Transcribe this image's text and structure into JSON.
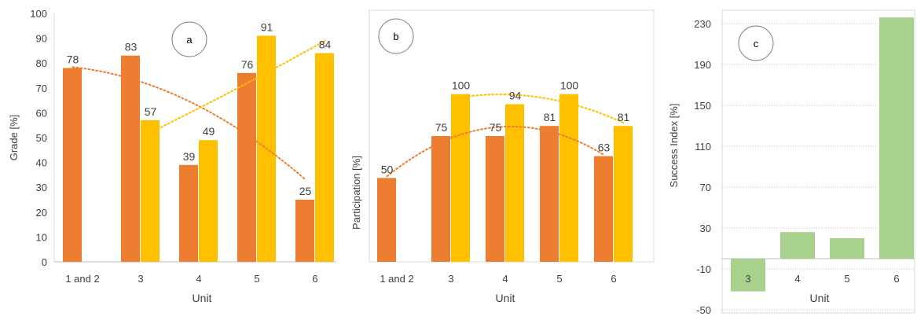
{
  "colors": {
    "orange": "#ed7d31",
    "gold": "#ffc000",
    "green": "#a9d18e",
    "orange_trend": "#ed7d31",
    "gold_trend": "#ffc000",
    "axis_text": "#404040",
    "grid": "#bfbfbf",
    "frame": "#d9d9d9"
  },
  "chart_data": [
    {
      "id": "a",
      "type": "bar",
      "panel_label": "a",
      "xlabel": "Unit",
      "ylabel": "Grade  [%]",
      "categories": [
        "1 and 2",
        "3",
        "4",
        "5",
        "6"
      ],
      "ylim": [
        0,
        100
      ],
      "yticks": [
        0,
        10,
        20,
        30,
        40,
        50,
        60,
        70,
        80,
        90,
        100
      ],
      "grid": false,
      "series": [
        {
          "color": "#ed7d31",
          "values": [
            78,
            83,
            39,
            76,
            25
          ]
        },
        {
          "color": "#ffc000",
          "values": [
            null,
            57,
            49,
            91,
            84
          ]
        }
      ],
      "trendlines": [
        {
          "series": 0,
          "type": "polynomial-2",
          "style": "dotted"
        },
        {
          "series": 1,
          "type": "polynomial-2",
          "style": "dotted"
        }
      ]
    },
    {
      "id": "b",
      "type": "bar",
      "panel_label": "b",
      "xlabel": "Unit",
      "ylabel": "Participation [%]",
      "categories": [
        "1 and 2",
        "3",
        "4",
        "5",
        "6"
      ],
      "ylim": [
        0,
        150
      ],
      "yticks": [],
      "grid": false,
      "series": [
        {
          "color": "#ed7d31",
          "values": [
            50,
            75,
            75,
            81,
            63
          ]
        },
        {
          "color": "#ffc000",
          "values": [
            null,
            100,
            94,
            100,
            81
          ]
        }
      ],
      "trendlines": [
        {
          "series": 0,
          "type": "polynomial-2",
          "style": "dotted"
        },
        {
          "series": 1,
          "type": "polynomial-2",
          "style": "dotted"
        }
      ]
    },
    {
      "id": "c",
      "type": "bar",
      "panel_label": "c",
      "xlabel": "Unit",
      "ylabel": "Success Index [%]",
      "categories": [
        "3",
        "4",
        "5",
        "6"
      ],
      "ylim": [
        -50,
        240
      ],
      "yticks": [
        -50,
        -10,
        30,
        70,
        110,
        150,
        190,
        230
      ],
      "grid": true,
      "series": [
        {
          "color": "#a9d18e",
          "values": [
            -32,
            26,
            20,
            236
          ]
        }
      ]
    }
  ]
}
